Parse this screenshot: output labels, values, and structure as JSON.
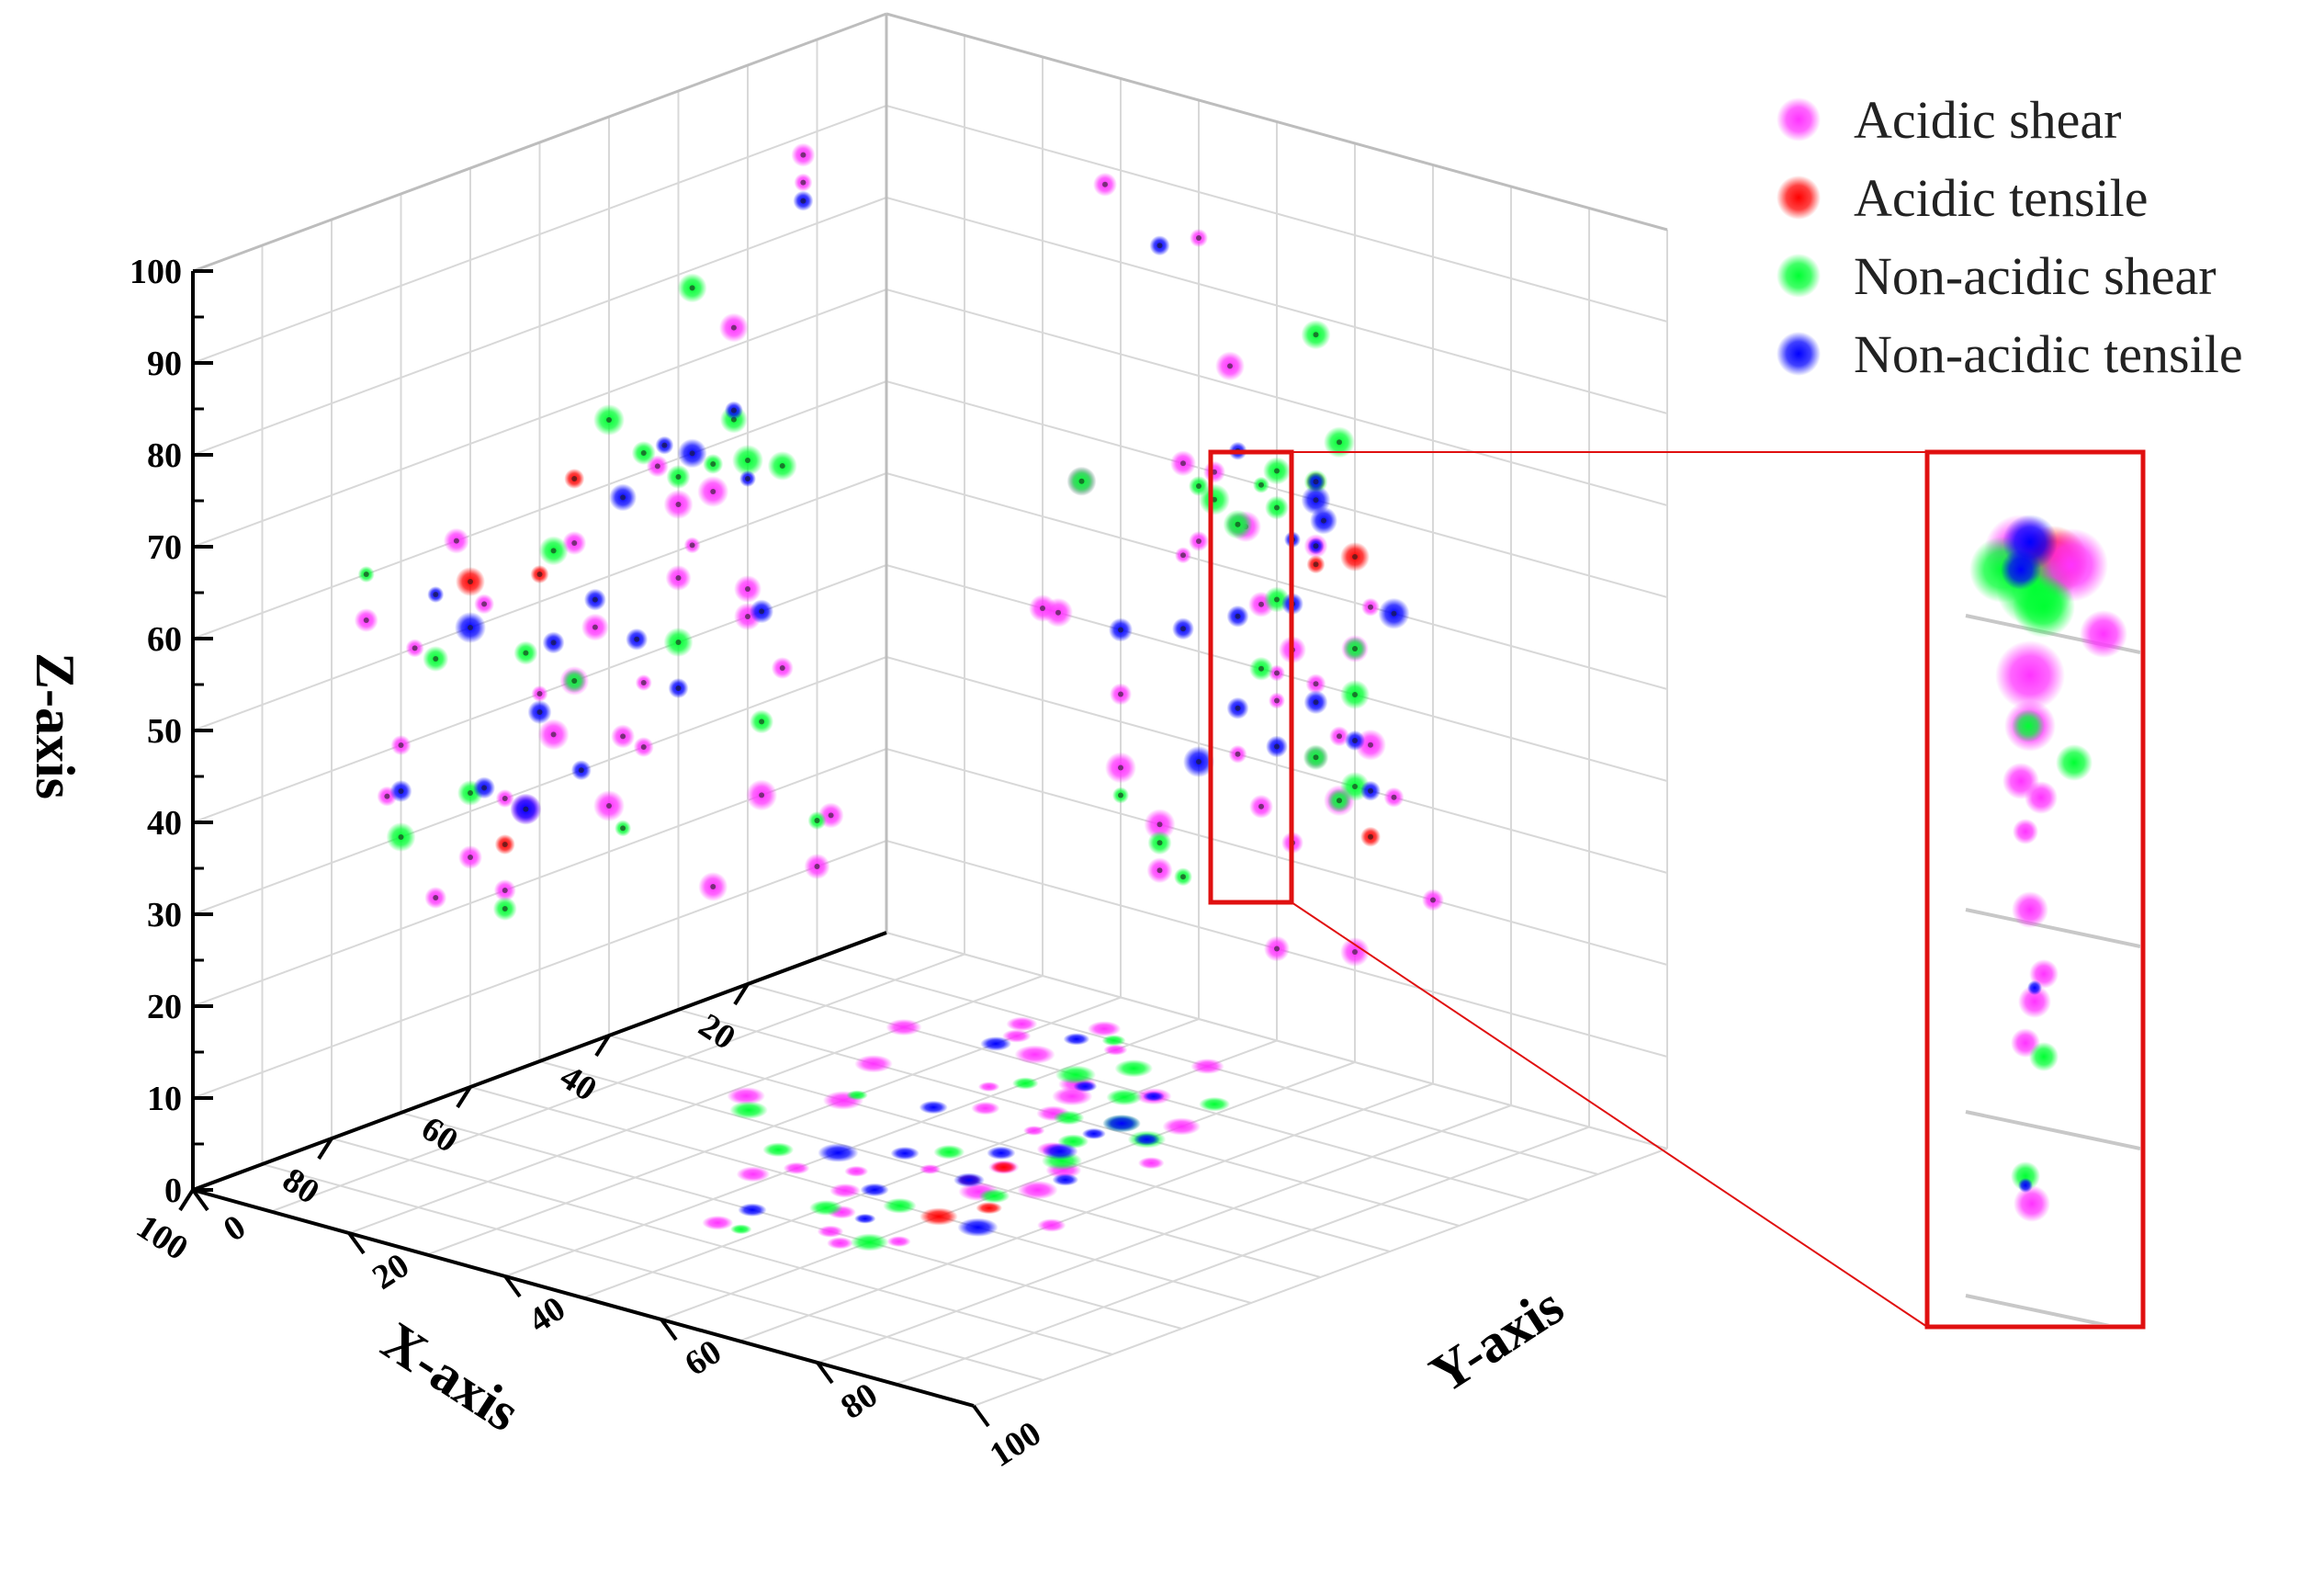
{
  "chart_data": {
    "type": "scatter",
    "projection": "3d",
    "xlabel": "X-axis",
    "ylabel": "Y-axis",
    "zlabel": "Z-axis",
    "xlim": [
      0,
      100
    ],
    "ylim": [
      0,
      100
    ],
    "zlim": [
      0,
      100
    ],
    "x_ticks": [
      "20",
      "40",
      "60",
      "80",
      "100"
    ],
    "y_ticks": [
      "0",
      "20",
      "40",
      "60",
      "80",
      "100"
    ],
    "z_ticks": [
      "0",
      "10",
      "20",
      "30",
      "40",
      "50",
      "60",
      "70",
      "80",
      "90",
      "100"
    ],
    "grid": true,
    "legend_position": "top-right",
    "inset": "zoomed view of the dense point column on the Y–Z wall",
    "series": [
      {
        "name": "Acidic shear",
        "color": "#ff33ff",
        "points": [
          [
            8,
            35,
            15
          ],
          [
            12,
            28,
            88
          ],
          [
            12,
            40,
            85
          ],
          [
            22,
            44,
            72
          ],
          [
            25,
            46,
            55
          ],
          [
            30,
            48,
            47
          ],
          [
            35,
            50,
            37
          ],
          [
            38,
            55,
            32
          ],
          [
            20,
            52,
            43
          ],
          [
            45,
            55,
            55
          ],
          [
            50,
            50,
            40
          ],
          [
            55,
            45,
            30
          ],
          [
            60,
            48,
            25
          ],
          [
            33,
            42,
            60
          ],
          [
            28,
            38,
            50
          ],
          [
            18,
            35,
            20
          ],
          [
            15,
            30,
            33
          ],
          [
            42,
            60,
            45
          ],
          [
            48,
            62,
            35
          ],
          [
            52,
            58,
            28
          ],
          [
            65,
            52,
            22
          ],
          [
            70,
            55,
            40
          ],
          [
            58,
            40,
            52
          ],
          [
            62,
            38,
            60
          ],
          [
            40,
            30,
            25
          ],
          [
            35,
            65,
            30
          ],
          [
            25,
            60,
            12
          ],
          [
            68,
            62,
            50
          ],
          [
            72,
            58,
            35
          ],
          [
            55,
            70,
            20
          ],
          [
            45,
            22,
            40
          ],
          [
            30,
            25,
            55
          ],
          [
            20,
            20,
            40
          ],
          [
            10,
            50,
            10
          ],
          [
            75,
            45,
            55
          ]
        ]
      },
      {
        "name": "Acidic tensile",
        "color": "#ff0000",
        "points": [
          [
            45,
            55,
            62
          ],
          [
            50,
            55,
            53
          ],
          [
            55,
            62,
            25
          ],
          [
            60,
            60,
            55
          ]
        ]
      },
      {
        "name": "Non-acidic shear",
        "color": "#00ff33",
        "points": [
          [
            15,
            45,
            55
          ],
          [
            20,
            42,
            57
          ],
          [
            25,
            40,
            58
          ],
          [
            30,
            50,
            58
          ],
          [
            35,
            55,
            62
          ],
          [
            22,
            50,
            62
          ],
          [
            28,
            55,
            78
          ],
          [
            40,
            58,
            67
          ],
          [
            52,
            60,
            45
          ],
          [
            60,
            55,
            32
          ],
          [
            18,
            58,
            28
          ],
          [
            10,
            38,
            15
          ],
          [
            45,
            48,
            40
          ],
          [
            38,
            30,
            22
          ],
          [
            65,
            50,
            48
          ],
          [
            70,
            60,
            30
          ],
          [
            55,
            35,
            18
          ],
          [
            48,
            25,
            55
          ],
          [
            75,
            48,
            60
          ],
          [
            30,
            60,
            40
          ]
        ]
      },
      {
        "name": "Non-acidic tensile",
        "color": "#0000ff",
        "points": [
          [
            12,
            35,
            83
          ],
          [
            20,
            52,
            55
          ],
          [
            28,
            55,
            60
          ],
          [
            32,
            55,
            62
          ],
          [
            38,
            56,
            58
          ],
          [
            42,
            52,
            48
          ],
          [
            50,
            55,
            38
          ],
          [
            58,
            50,
            32
          ],
          [
            48,
            45,
            45
          ],
          [
            52,
            40,
            28
          ],
          [
            65,
            55,
            55
          ],
          [
            22,
            45,
            63
          ],
          [
            36,
            38,
            42
          ],
          [
            44,
            62,
            30
          ],
          [
            30,
            60,
            35
          ],
          [
            18,
            30,
            40
          ],
          [
            60,
            65,
            50
          ],
          [
            70,
            45,
            35
          ]
        ]
      }
    ]
  }
}
